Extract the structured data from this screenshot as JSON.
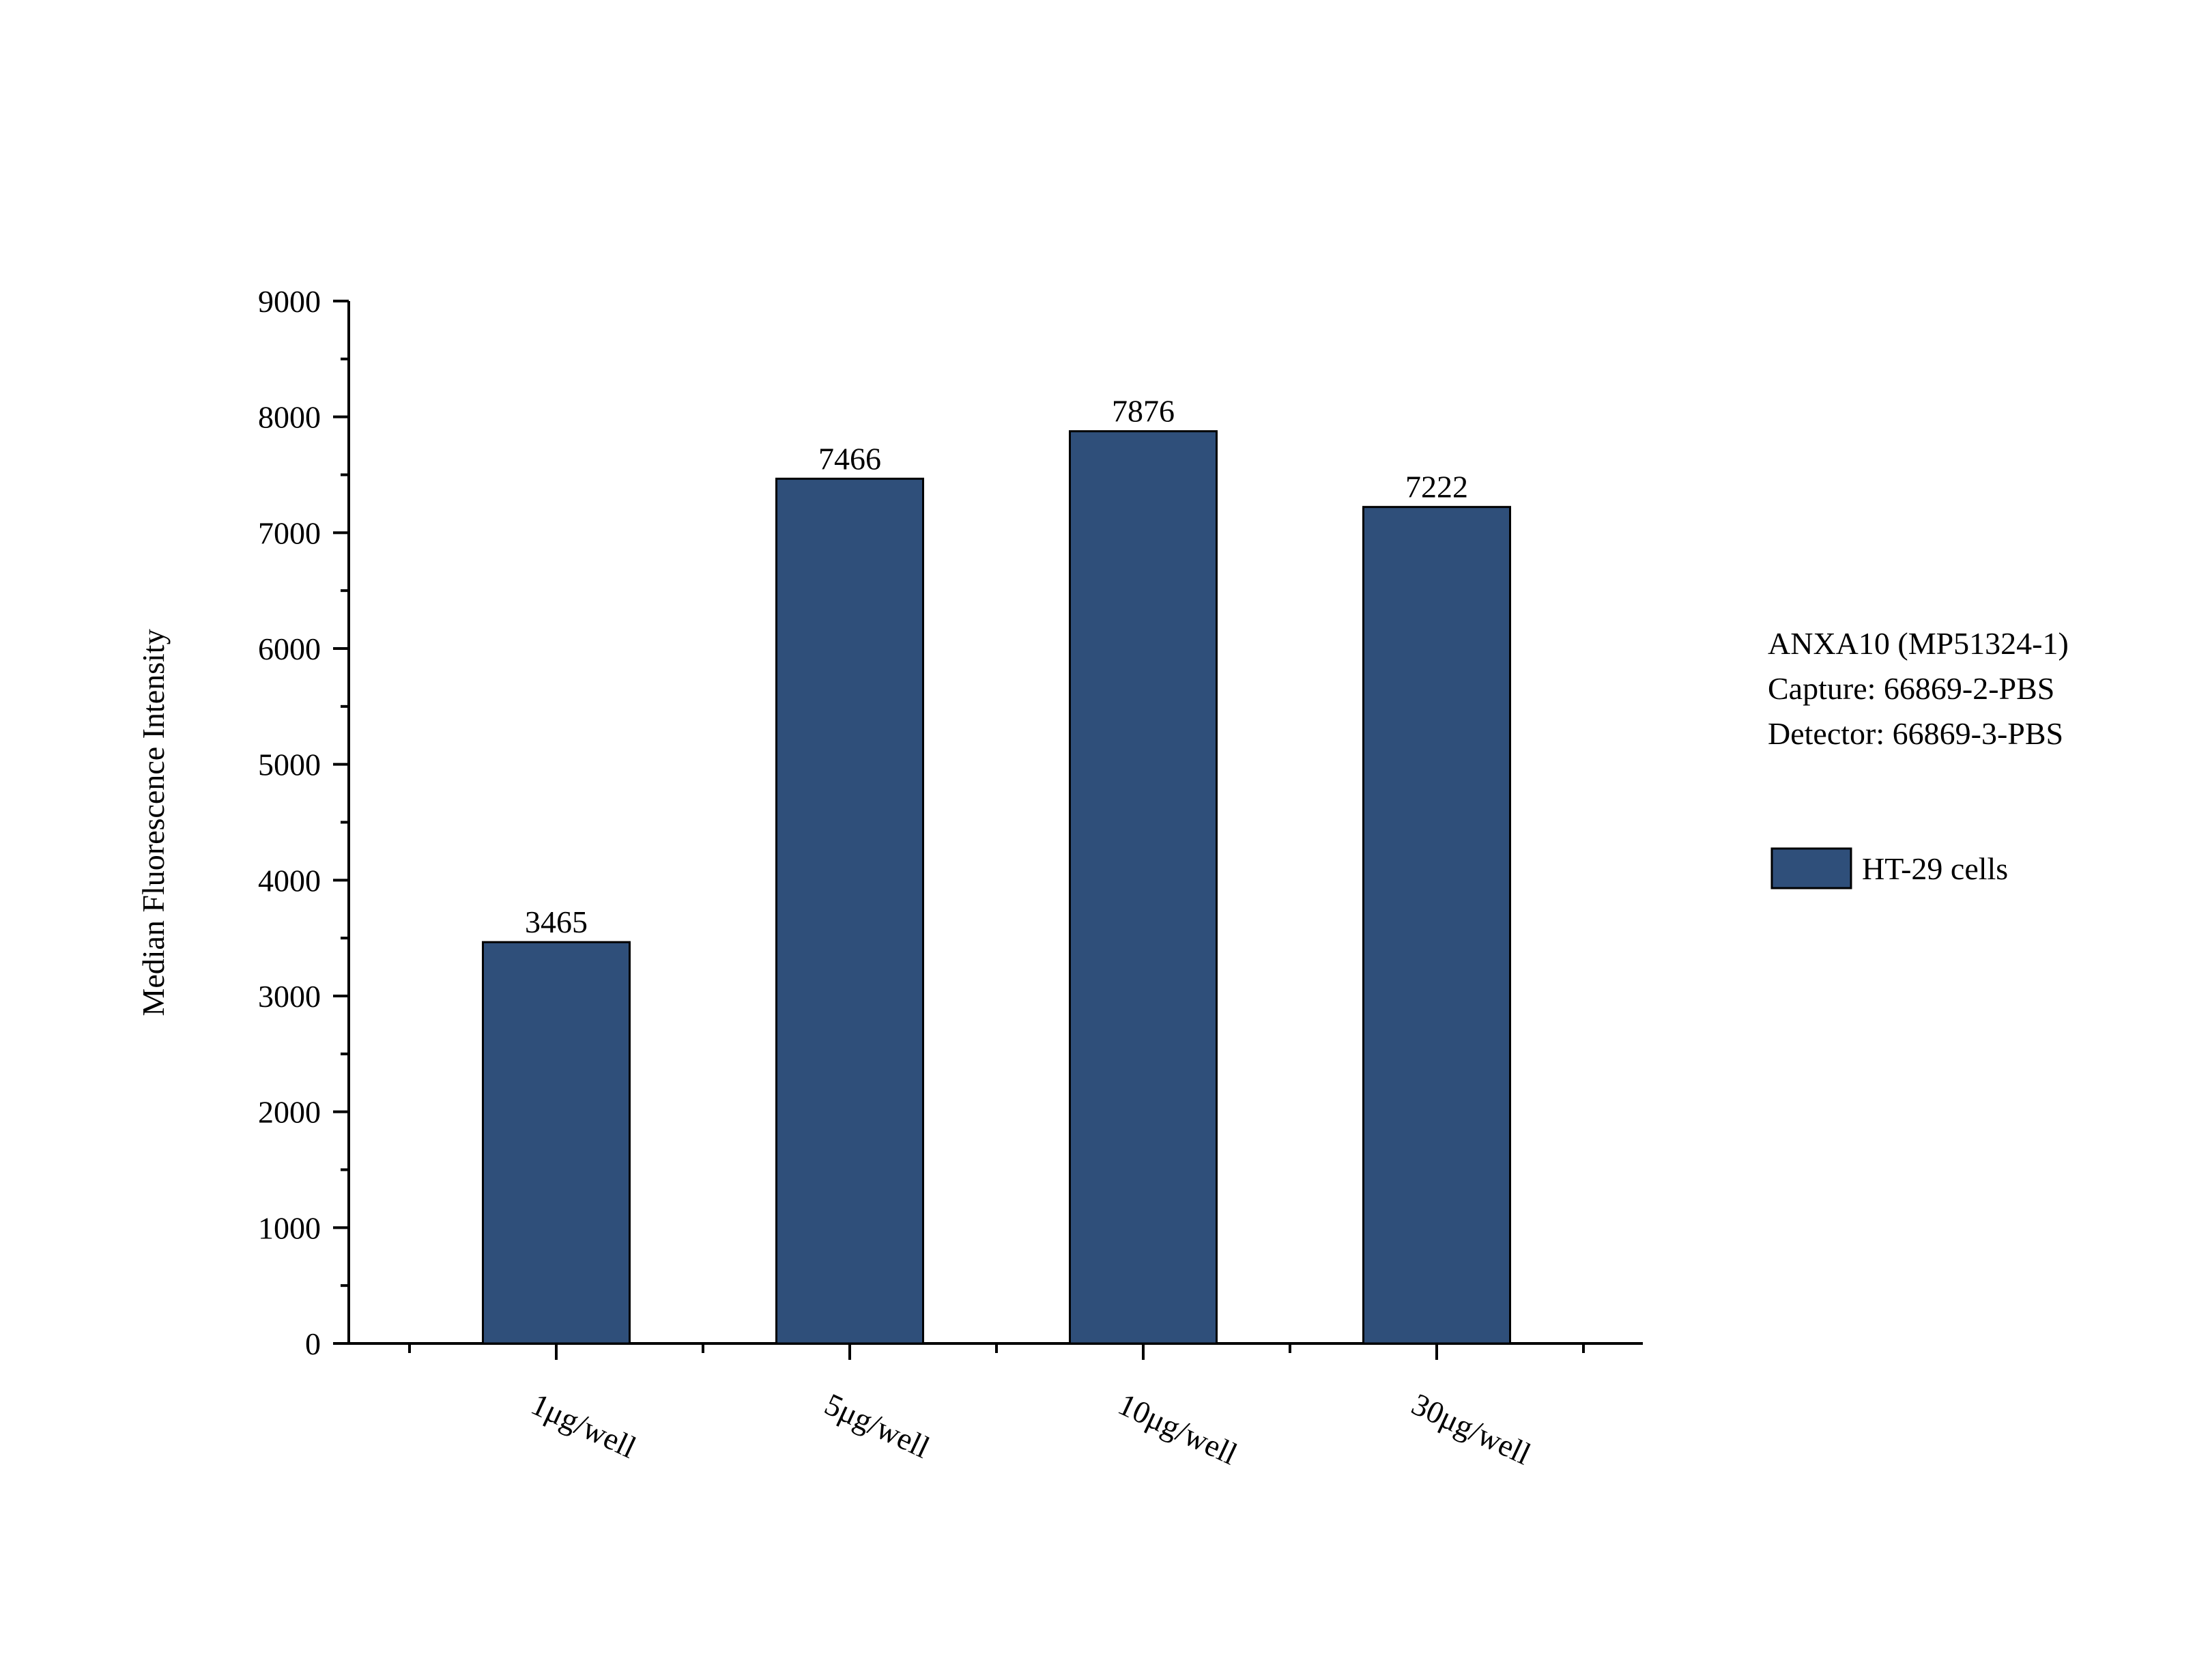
{
  "chart_data": {
    "type": "bar",
    "categories": [
      "1μg/well",
      "5μg/well",
      "10μg/well",
      "30μg/well"
    ],
    "series": [
      {
        "name": "HT-29 cells",
        "values": [
          3465,
          7466,
          7876,
          7222
        ],
        "color": "#2F4F7A"
      }
    ],
    "data_labels": [
      "3465",
      "7466",
      "7876",
      "7222"
    ],
    "ylabel": "Median Fluorescence Intensity",
    "xlabel": "",
    "ylim": [
      0,
      9000
    ],
    "yticks": [
      0,
      1000,
      2000,
      3000,
      4000,
      5000,
      6000,
      7000,
      8000,
      9000
    ],
    "grid": false,
    "legend_position": "right",
    "annotations": [
      "ANXA10 (MP51324-1)",
      "Capture: 66869-2-PBS",
      "Detector: 66869-3-PBS"
    ]
  }
}
